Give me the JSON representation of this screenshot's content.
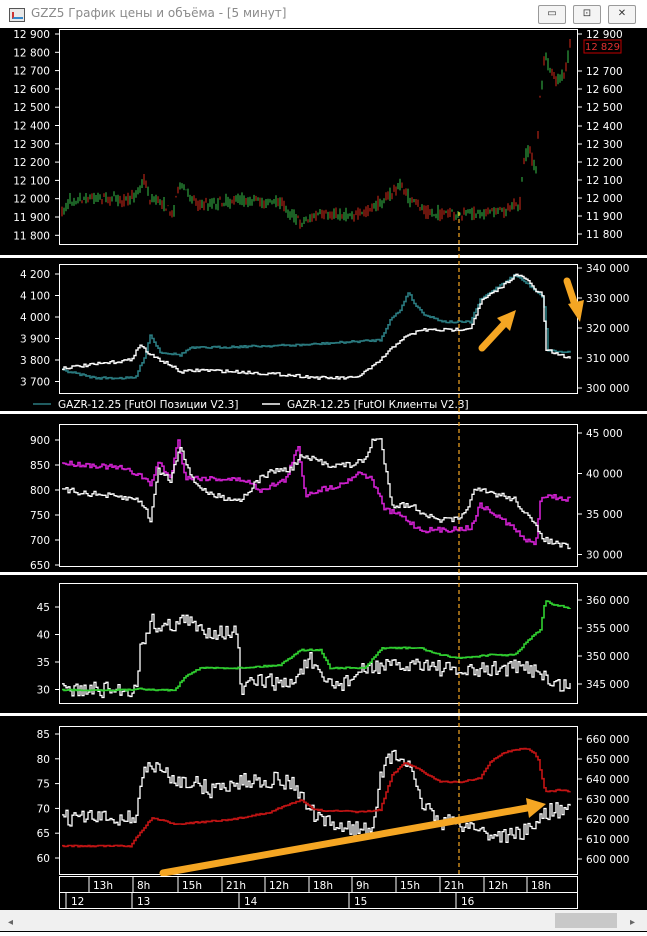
{
  "window": {
    "title": "GZZ5 График цены и объёма - [5 минут]",
    "buttons": {
      "minimize": "▭",
      "maximize": "⊡",
      "close": "✕"
    }
  },
  "colors": {
    "background": "#000000",
    "separator": "#ffffff",
    "price_up": "#38c04a",
    "price_down": "#d42a1a",
    "teal": "#2a7b80",
    "magenta": "#d020d0",
    "green": "#30d030",
    "red": "#c41414",
    "white": "#ffffff",
    "annotation": "#f5a623",
    "last_price_box": "#c00000"
  },
  "panels": [
    {
      "id": "price",
      "left_ticks": [
        "12 900",
        "12 800",
        "12 700",
        "12 600",
        "12 500",
        "12 400",
        "12 300",
        "12 200",
        "12 100",
        "12 000",
        "11 900",
        "11 800"
      ],
      "right_ticks": [
        "12 900",
        "12 700",
        "12 600",
        "12 500",
        "12 400",
        "12 300",
        "12 200",
        "12 100",
        "12 000",
        "11 900",
        "11 800"
      ],
      "last_price": "12 829"
    },
    {
      "id": "open-interest",
      "left_ticks": [
        "4 200",
        "4 100",
        "4 000",
        "3 900",
        "3 800",
        "3 700"
      ],
      "right_ticks": [
        "340 000",
        "330 000",
        "320 000",
        "310 000",
        "300 000"
      ],
      "legend": [
        {
          "label": "GAZR-12.25 [FutOI Позиции V2.3]",
          "color": "#2a7b80"
        },
        {
          "label": "GAZR-12.25 [FutOI Клиенты V2.3]",
          "color": "#ffffff"
        }
      ]
    },
    {
      "id": "indicator-2",
      "left_ticks": [
        "900",
        "850",
        "800",
        "750",
        "700",
        "650"
      ],
      "right_ticks": [
        "45 000",
        "40 000",
        "35 000",
        "30 000"
      ]
    },
    {
      "id": "indicator-3",
      "left_ticks": [
        "45",
        "40",
        "35",
        "30"
      ],
      "right_ticks": [
        "360 000",
        "355 000",
        "350 000",
        "345 000"
      ]
    },
    {
      "id": "indicator-4",
      "left_ticks": [
        "85",
        "80",
        "75",
        "70",
        "65",
        "60"
      ],
      "right_ticks": [
        "660 000",
        "650 000",
        "640 000",
        "630 000",
        "620 000",
        "610 000",
        "600 000"
      ]
    }
  ],
  "time_axis": {
    "hours": [
      "13h",
      "8h",
      "15h",
      "21h",
      "12h",
      "18h",
      "9h",
      "15h",
      "21h",
      "12h",
      "18h"
    ],
    "days": [
      "12",
      "13",
      "14",
      "15",
      "16"
    ]
  }
}
